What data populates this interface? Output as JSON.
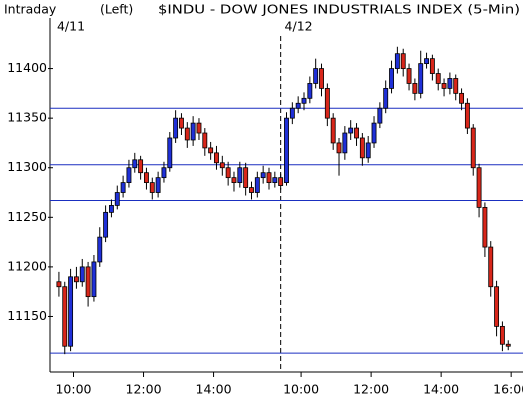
{
  "chart_data": {
    "type": "candlestick",
    "label": "Intraday",
    "axis_side": "(Left)",
    "title": "$INDU - DOW JONES INDUSTRIALS INDEX (5-Min)",
    "up_color": "#1f30d8",
    "down_color": "#d8261a",
    "wick_color": "#000000",
    "line_color": "#1a2fc0",
    "ylim": [
      11094,
      11451
    ],
    "yticks": [
      11150,
      11200,
      11250,
      11300,
      11350,
      11400
    ],
    "xlim": [
      0,
      79
    ],
    "xticks": [
      {
        "value": 3,
        "label": "10:00"
      },
      {
        "value": 15,
        "label": "12:00"
      },
      {
        "value": 27,
        "label": "14:00"
      },
      {
        "value": 42,
        "label": "10:00"
      },
      {
        "value": 54,
        "label": "12:00"
      },
      {
        "value": 66,
        "label": "14:00"
      },
      {
        "value": 78,
        "label": "16:00"
      }
    ],
    "day_labels": [
      {
        "value": 0,
        "label": "4/11"
      },
      {
        "value": 39,
        "label": "4/12"
      }
    ],
    "hlines": [
      11360,
      11303,
      11267,
      11113
    ],
    "candles": [
      [
        11185,
        11195,
        11170,
        11180
      ],
      [
        11180,
        11185,
        11112,
        11120
      ],
      [
        11120,
        11198,
        11115,
        11190
      ],
      [
        11190,
        11200,
        11178,
        11185
      ],
      [
        11185,
        11208,
        11180,
        11200
      ],
      [
        11200,
        11205,
        11160,
        11170
      ],
      [
        11170,
        11212,
        11165,
        11205
      ],
      [
        11205,
        11240,
        11200,
        11230
      ],
      [
        11230,
        11262,
        11225,
        11255
      ],
      [
        11255,
        11268,
        11250,
        11262
      ],
      [
        11262,
        11282,
        11258,
        11275
      ],
      [
        11275,
        11292,
        11270,
        11285
      ],
      [
        11285,
        11308,
        11280,
        11300
      ],
      [
        11300,
        11315,
        11295,
        11308
      ],
      [
        11308,
        11312,
        11288,
        11295
      ],
      [
        11295,
        11300,
        11278,
        11285
      ],
      [
        11285,
        11290,
        11268,
        11275
      ],
      [
        11275,
        11296,
        11270,
        11290
      ],
      [
        11290,
        11306,
        11285,
        11300
      ],
      [
        11300,
        11336,
        11296,
        11330
      ],
      [
        11330,
        11358,
        11325,
        11350
      ],
      [
        11350,
        11355,
        11333,
        11340
      ],
      [
        11340,
        11346,
        11320,
        11328
      ],
      [
        11328,
        11352,
        11322,
        11345
      ],
      [
        11345,
        11350,
        11328,
        11335
      ],
      [
        11335,
        11340,
        11312,
        11320
      ],
      [
        11320,
        11326,
        11308,
        11315
      ],
      [
        11315,
        11322,
        11298,
        11305
      ],
      [
        11305,
        11312,
        11292,
        11300
      ],
      [
        11300,
        11306,
        11282,
        11290
      ],
      [
        11290,
        11296,
        11276,
        11285
      ],
      [
        11285,
        11306,
        11280,
        11300
      ],
      [
        11300,
        11305,
        11272,
        11280
      ],
      [
        11280,
        11286,
        11268,
        11275
      ],
      [
        11275,
        11296,
        11270,
        11290
      ],
      [
        11290,
        11302,
        11284,
        11295
      ],
      [
        11295,
        11300,
        11278,
        11285
      ],
      [
        11285,
        11296,
        11280,
        11290
      ],
      [
        11290,
        11294,
        11278,
        11282
      ],
      [
        11285,
        11356,
        11282,
        11350
      ],
      [
        11350,
        11366,
        11344,
        11360
      ],
      [
        11360,
        11372,
        11355,
        11365
      ],
      [
        11365,
        11376,
        11358,
        11370
      ],
      [
        11370,
        11392,
        11365,
        11385
      ],
      [
        11385,
        11410,
        11380,
        11400
      ],
      [
        11400,
        11405,
        11372,
        11380
      ],
      [
        11380,
        11385,
        11342,
        11350
      ],
      [
        11350,
        11355,
        11318,
        11325
      ],
      [
        11325,
        11330,
        11292,
        11315
      ],
      [
        11315,
        11342,
        11308,
        11335
      ],
      [
        11335,
        11348,
        11328,
        11340
      ],
      [
        11340,
        11345,
        11322,
        11330
      ],
      [
        11330,
        11335,
        11302,
        11310
      ],
      [
        11310,
        11332,
        11305,
        11325
      ],
      [
        11325,
        11352,
        11320,
        11345
      ],
      [
        11345,
        11366,
        11340,
        11360
      ],
      [
        11360,
        11388,
        11355,
        11380
      ],
      [
        11380,
        11408,
        11375,
        11400
      ],
      [
        11400,
        11422,
        11395,
        11415
      ],
      [
        11415,
        11420,
        11392,
        11400
      ],
      [
        11400,
        11405,
        11378,
        11385
      ],
      [
        11385,
        11390,
        11368,
        11375
      ],
      [
        11375,
        11418,
        11370,
        11405
      ],
      [
        11405,
        11416,
        11400,
        11410
      ],
      [
        11410,
        11414,
        11388,
        11395
      ],
      [
        11395,
        11400,
        11378,
        11385
      ],
      [
        11385,
        11390,
        11372,
        11380
      ],
      [
        11380,
        11396,
        11374,
        11390
      ],
      [
        11390,
        11394,
        11368,
        11375
      ],
      [
        11375,
        11380,
        11358,
        11365
      ],
      [
        11365,
        11370,
        11334,
        11340
      ],
      [
        11340,
        11344,
        11292,
        11300
      ],
      [
        11300,
        11304,
        11250,
        11260
      ],
      [
        11260,
        11265,
        11210,
        11220
      ],
      [
        11220,
        11226,
        11170,
        11180
      ],
      [
        11180,
        11186,
        11130,
        11140
      ],
      [
        11140,
        11145,
        11115,
        11122
      ],
      [
        11122,
        11126,
        11116,
        11120
      ]
    ]
  }
}
